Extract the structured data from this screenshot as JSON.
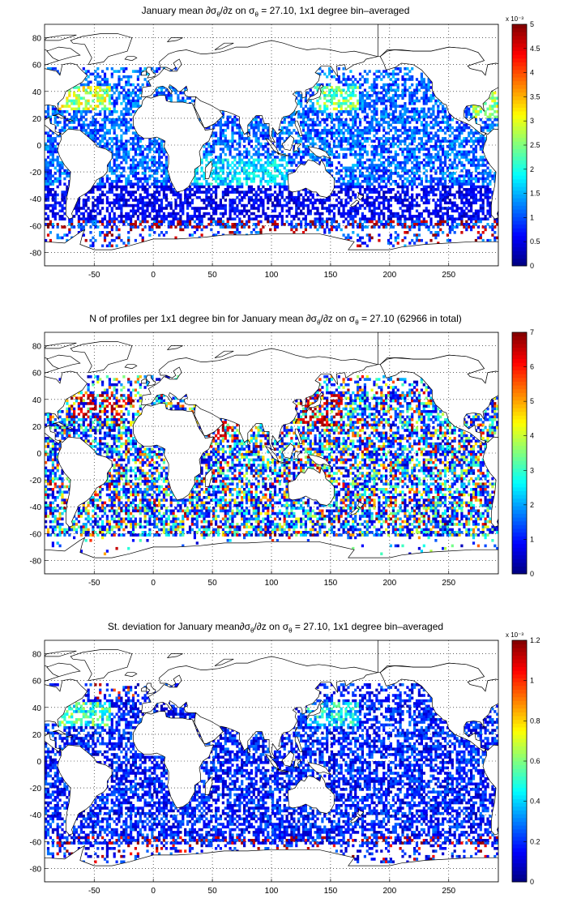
{
  "panels": [
    {
      "title_html": "January mean ∂σ<sub>θ</sub>/∂z on σ<sub>θ</sub> = 27.10, 1x1 degree bin–averaged",
      "colorbar_exponent": "x 10⁻³",
      "colorbar_ticks": [
        "0",
        "0.5",
        "1",
        "1.5",
        "2",
        "2.5",
        "3",
        "3.5",
        "4",
        "4.5",
        "5"
      ],
      "clim": [
        0,
        5
      ],
      "field": "mean"
    },
    {
      "title_html": "N of profiles per 1x1 degree bin for January mean ∂σ<sub>θ</sub>/∂z on σ<sub>θ</sub> = 27.10 (62966 in total)",
      "colorbar_exponent": "",
      "colorbar_ticks": [
        "0",
        "1",
        "2",
        "3",
        "4",
        "5",
        "6",
        "7"
      ],
      "clim": [
        0,
        7
      ],
      "field": "count"
    },
    {
      "title_html": "St. deviation for January mean∂σ<sub>θ</sub>/∂z on σ<sub>θ</sub> = 27.10, 1x1 degree bin–averaged",
      "colorbar_exponent": "x 10⁻³",
      "colorbar_ticks": [
        "0",
        "0.2",
        "0.4",
        "0.6",
        "0.8",
        "1",
        "1.2"
      ],
      "clim": [
        0,
        1.2
      ],
      "field": "std"
    }
  ],
  "axes": {
    "xticks": [
      "-50",
      "0",
      "50",
      "100",
      "150",
      "200",
      "250"
    ],
    "yticks": [
      "80",
      "60",
      "40",
      "20",
      "0",
      "-20",
      "-40",
      "-60",
      "-80"
    ]
  },
  "chart_data": [
    {
      "type": "heatmap",
      "title": "January mean ∂σθ/∂z on σθ = 27.10, 1x1 degree bin–averaged",
      "xlim": [
        -92,
        292
      ],
      "ylim": [
        -90,
        90
      ],
      "xticks": [
        -50,
        0,
        50,
        100,
        150,
        200,
        250
      ],
      "yticks": [
        -80,
        -60,
        -40,
        -20,
        0,
        20,
        40,
        60,
        80
      ],
      "colorbar": {
        "min": 0,
        "max": 5,
        "ticks": [
          0,
          0.5,
          1,
          1.5,
          2,
          2.5,
          3,
          3.5,
          4,
          4.5,
          5
        ],
        "scale_label": "x 10^-3",
        "colormap": "jet"
      },
      "grid": true
    },
    {
      "type": "heatmap",
      "title": "N of profiles per 1x1 degree bin for January mean ∂σθ/∂z on σθ = 27.10 (62966 in total)",
      "xlim": [
        -92,
        292
      ],
      "ylim": [
        -90,
        90
      ],
      "xticks": [
        -50,
        0,
        50,
        100,
        150,
        200,
        250
      ],
      "yticks": [
        -80,
        -60,
        -40,
        -20,
        0,
        20,
        40,
        60,
        80
      ],
      "colorbar": {
        "min": 0,
        "max": 7,
        "ticks": [
          0,
          1,
          2,
          3,
          4,
          5,
          6,
          7
        ],
        "colormap": "jet"
      },
      "total_profiles": 62966,
      "grid": true
    },
    {
      "type": "heatmap",
      "title": "St. deviation for January mean∂σθ/∂z on σθ = 27.10, 1x1 degree bin–averaged",
      "xlim": [
        -92,
        292
      ],
      "ylim": [
        -90,
        90
      ],
      "xticks": [
        -50,
        0,
        50,
        100,
        150,
        200,
        250
      ],
      "yticks": [
        -80,
        -60,
        -40,
        -20,
        0,
        20,
        40,
        60,
        80
      ],
      "colorbar": {
        "min": 0,
        "max": 1.2,
        "ticks": [
          0,
          0.2,
          0.4,
          0.6,
          0.8,
          1,
          1.2
        ],
        "scale_label": "x 10^-3",
        "colormap": "jet"
      },
      "grid": true
    }
  ]
}
